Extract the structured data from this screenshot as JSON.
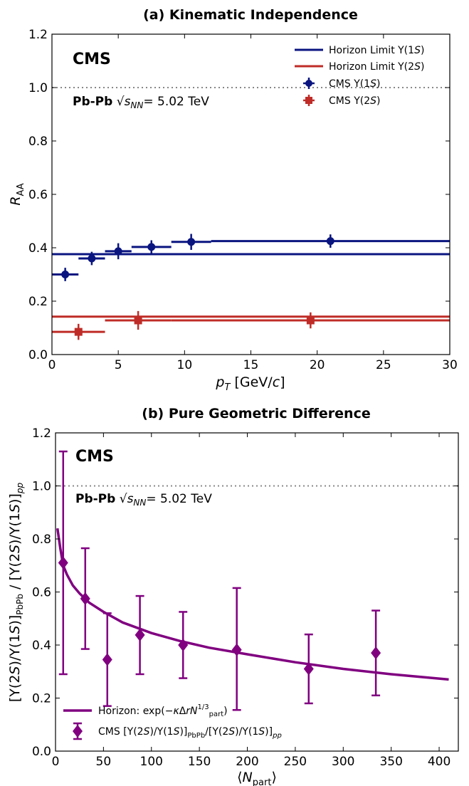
{
  "colors": {
    "navy": "#0a1580",
    "red": "#bf2c27",
    "purple": "#800080",
    "reference_line": "#888888"
  },
  "chart_data": [
    {
      "type": "scatter",
      "title": "(a) Kinematic Independence",
      "xlabel": "p_T [GeV/c]",
      "ylabel": "R_AA",
      "xlim": [
        0,
        30
      ],
      "ylim": [
        0,
        1.2
      ],
      "xticks": [
        "0",
        "5",
        "10",
        "15",
        "20",
        "25",
        "30"
      ],
      "yticks": [
        "0.0",
        "0.2",
        "0.4",
        "0.6",
        "0.8",
        "1.0",
        "1.2"
      ],
      "reference_line_y": 1.0,
      "experiment_label": "CMS",
      "system_label": "Pb-Pb",
      "energy_label": "= 5.02 TeV",
      "legend_position": "top-right",
      "legend": [
        "Horizon Limit Υ(1S)",
        "Horizon Limit Υ(2S)",
        "CMS Υ(1S)",
        "CMS Υ(2S)"
      ],
      "horizon_lines": [
        {
          "name": "Horizon Limit Υ(1S)",
          "y": 0.376,
          "color": "#0a1580"
        },
        {
          "name": "Horizon Limit Υ(2S)",
          "y": 0.142,
          "color": "#bf2c27"
        }
      ],
      "series": [
        {
          "name": "CMS Υ(1S)",
          "color": "#0a1580",
          "marker": "circle",
          "points": [
            {
              "x": 1.0,
              "xlo": 0,
              "xhi": 2,
              "y": 0.3,
              "err": 0.025
            },
            {
              "x": 3.0,
              "xlo": 2,
              "xhi": 4,
              "y": 0.36,
              "err": 0.025
            },
            {
              "x": 5.0,
              "xlo": 4,
              "xhi": 6,
              "y": 0.387,
              "err": 0.03
            },
            {
              "x": 7.5,
              "xlo": 6,
              "xhi": 9,
              "y": 0.403,
              "err": 0.025
            },
            {
              "x": 10.5,
              "xlo": 9,
              "xhi": 12,
              "y": 0.422,
              "err": 0.03
            },
            {
              "x": 21.0,
              "xlo": 12,
              "xhi": 30,
              "y": 0.425,
              "err": 0.025
            }
          ]
        },
        {
          "name": "CMS Υ(2S)",
          "color": "#bf2c27",
          "marker": "square",
          "points": [
            {
              "x": 2.0,
              "xlo": 0,
              "xhi": 4,
              "y": 0.085,
              "err": 0.03
            },
            {
              "x": 6.5,
              "xlo": 4,
              "xhi": 9,
              "y": 0.128,
              "err": 0.035
            },
            {
              "x": 19.5,
              "xlo": 9,
              "xhi": 30,
              "y": 0.128,
              "err": 0.03
            }
          ]
        }
      ]
    },
    {
      "type": "scatter",
      "title": "(b) Pure Geometric Difference",
      "xlabel": "⟨N_part⟩",
      "ylabel": "[Υ(2S)/Υ(1S)]_PbPb / [Υ(2S)/Υ(1S)]_pp",
      "xlim": [
        0,
        420
      ],
      "ylim": [
        0,
        1.2
      ],
      "xticks": [
        "0",
        "50",
        "100",
        "150",
        "200",
        "250",
        "300",
        "350",
        "400"
      ],
      "yticks": [
        "0.0",
        "0.2",
        "0.4",
        "0.6",
        "0.8",
        "1.0",
        "1.2"
      ],
      "reference_line_y": 1.0,
      "experiment_label": "CMS",
      "system_label": "Pb-Pb",
      "energy_label": "= 5.02 TeV",
      "legend_position": "bottom-left",
      "legend": [
        "Horizon: exp(−κΔrN_part^1/3)",
        "CMS [Υ(2S)/Υ(1S)]_PbPb/[Υ(2S)/Υ(1S)]_pp"
      ],
      "curve": {
        "name": "Horizon: exp(−κΔrN_part^1/3)",
        "color": "#800080",
        "x": [
          2,
          5,
          8,
          12,
          18,
          25,
          35,
          50,
          70,
          100,
          130,
          160,
          200,
          250,
          300,
          350,
          410
        ],
        "y": [
          0.84,
          0.765,
          0.7,
          0.665,
          0.625,
          0.595,
          0.56,
          0.525,
          0.485,
          0.445,
          0.415,
          0.39,
          0.365,
          0.335,
          0.31,
          0.29,
          0.27
        ]
      },
      "series": [
        {
          "name": "CMS [Υ(2S)/Υ(1S)]_PbPb/[Υ(2S)/Υ(1S)]_pp",
          "color": "#800080",
          "marker": "diamond",
          "points": [
            {
              "x": 8,
              "y": 0.71,
              "lo": 0.29,
              "hi": 1.13
            },
            {
              "x": 31,
              "y": 0.575,
              "lo": 0.385,
              "hi": 0.765
            },
            {
              "x": 54,
              "y": 0.345,
              "lo": 0.17,
              "hi": 0.52
            },
            {
              "x": 88,
              "y": 0.438,
              "lo": 0.29,
              "hi": 0.585
            },
            {
              "x": 133,
              "y": 0.4,
              "lo": 0.275,
              "hi": 0.525
            },
            {
              "x": 189,
              "y": 0.382,
              "lo": 0.155,
              "hi": 0.615
            },
            {
              "x": 264,
              "y": 0.31,
              "lo": 0.18,
              "hi": 0.44
            },
            {
              "x": 334,
              "y": 0.37,
              "lo": 0.21,
              "hi": 0.53
            }
          ]
        }
      ]
    }
  ]
}
